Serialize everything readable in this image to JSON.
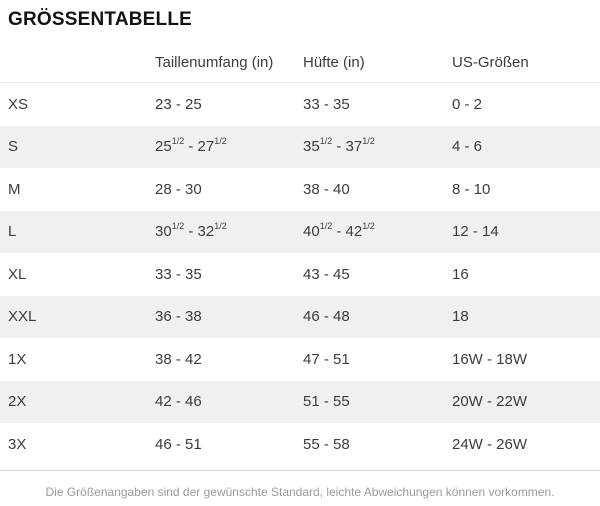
{
  "title": "GRÖSSENTABELLE",
  "table": {
    "headers": [
      {
        "label": ""
      },
      {
        "label": "Taillenumfang (in)"
      },
      {
        "label": "Hüfte (in)"
      },
      {
        "label": "US-Größen"
      }
    ],
    "rows": [
      {
        "label": "XS",
        "cells": [
          [
            {
              "t": "23 - 25"
            }
          ],
          [
            {
              "t": "33 - 35"
            }
          ],
          [
            {
              "t": "0 - 2"
            }
          ]
        ]
      },
      {
        "label": "S",
        "cells": [
          [
            {
              "t": "25"
            },
            {
              "s": "1/2"
            },
            {
              "t": " - 27"
            },
            {
              "s": "1/2"
            }
          ],
          [
            {
              "t": "35"
            },
            {
              "s": "1/2"
            },
            {
              "t": " - 37"
            },
            {
              "s": "1/2"
            }
          ],
          [
            {
              "t": "4 - 6"
            }
          ]
        ]
      },
      {
        "label": "M",
        "cells": [
          [
            {
              "t": "28 - 30"
            }
          ],
          [
            {
              "t": "38 - 40"
            }
          ],
          [
            {
              "t": "8 - 10"
            }
          ]
        ]
      },
      {
        "label": "L",
        "cells": [
          [
            {
              "t": "30"
            },
            {
              "s": "1/2"
            },
            {
              "t": " - 32"
            },
            {
              "s": "1/2"
            }
          ],
          [
            {
              "t": "40"
            },
            {
              "s": "1/2"
            },
            {
              "t": " - 42"
            },
            {
              "s": "1/2"
            }
          ],
          [
            {
              "t": "12 - 14"
            }
          ]
        ]
      },
      {
        "label": "XL",
        "cells": [
          [
            {
              "t": "33 - 35"
            }
          ],
          [
            {
              "t": "43 - 45"
            }
          ],
          [
            {
              "t": "16"
            }
          ]
        ]
      },
      {
        "label": "XXL",
        "cells": [
          [
            {
              "t": "36 - 38"
            }
          ],
          [
            {
              "t": "46 - 48"
            }
          ],
          [
            {
              "t": "18"
            }
          ]
        ]
      },
      {
        "label": "1X",
        "cells": [
          [
            {
              "t": "38 - 42"
            }
          ],
          [
            {
              "t": "47 - 51"
            }
          ],
          [
            {
              "t": "16W - 18W"
            }
          ]
        ]
      },
      {
        "label": "2X",
        "cells": [
          [
            {
              "t": "42 - 46"
            }
          ],
          [
            {
              "t": "51 - 55"
            }
          ],
          [
            {
              "t": "20W - 22W"
            }
          ]
        ]
      },
      {
        "label": "3X",
        "cells": [
          [
            {
              "t": "46 - 51"
            }
          ],
          [
            {
              "t": "55 - 58"
            }
          ],
          [
            {
              "t": "24W - 26W"
            }
          ]
        ]
      }
    ]
  },
  "footnote": "Die Größenangaben sind der gewünschte Standard, leichte Abweichungen können vorkommen.",
  "colors": {
    "stripe_row_bg": "#f0f0f0",
    "header_divider": "#e7e7e7",
    "footer_divider": "#d8d8d8",
    "footnote_text": "#9a9a9a"
  },
  "chart_data": {
    "type": "table",
    "title": "GRÖSSENTABELLE",
    "columns": [
      "",
      "Taillenumfang (in)",
      "Hüfte (in)",
      "US-Größen"
    ],
    "rows": [
      [
        "XS",
        "23 - 25",
        "33 - 35",
        "0 - 2"
      ],
      [
        "S",
        "25 1/2 - 27 1/2",
        "35 1/2 - 37 1/2",
        "4 - 6"
      ],
      [
        "M",
        "28 - 30",
        "38 - 40",
        "8 - 10"
      ],
      [
        "L",
        "30 1/2 - 32 1/2",
        "40 1/2 - 42 1/2",
        "12 - 14"
      ],
      [
        "XL",
        "33 - 35",
        "43 - 45",
        "16"
      ],
      [
        "XXL",
        "36 - 38",
        "46 - 48",
        "18"
      ],
      [
        "1X",
        "38 - 42",
        "47 - 51",
        "16W - 18W"
      ],
      [
        "2X",
        "42 - 46",
        "51 - 55",
        "20W - 22W"
      ],
      [
        "3X",
        "46 - 51",
        "55 - 58",
        "24W - 26W"
      ]
    ],
    "footnote": "Die Größenangaben sind der gewünschte Standard, leichte Abweichungen können vorkommen.",
    "layout": {
      "striped_rows": "even rows shaded",
      "grid": false,
      "header_rule": true,
      "footer_rule": true
    }
  }
}
